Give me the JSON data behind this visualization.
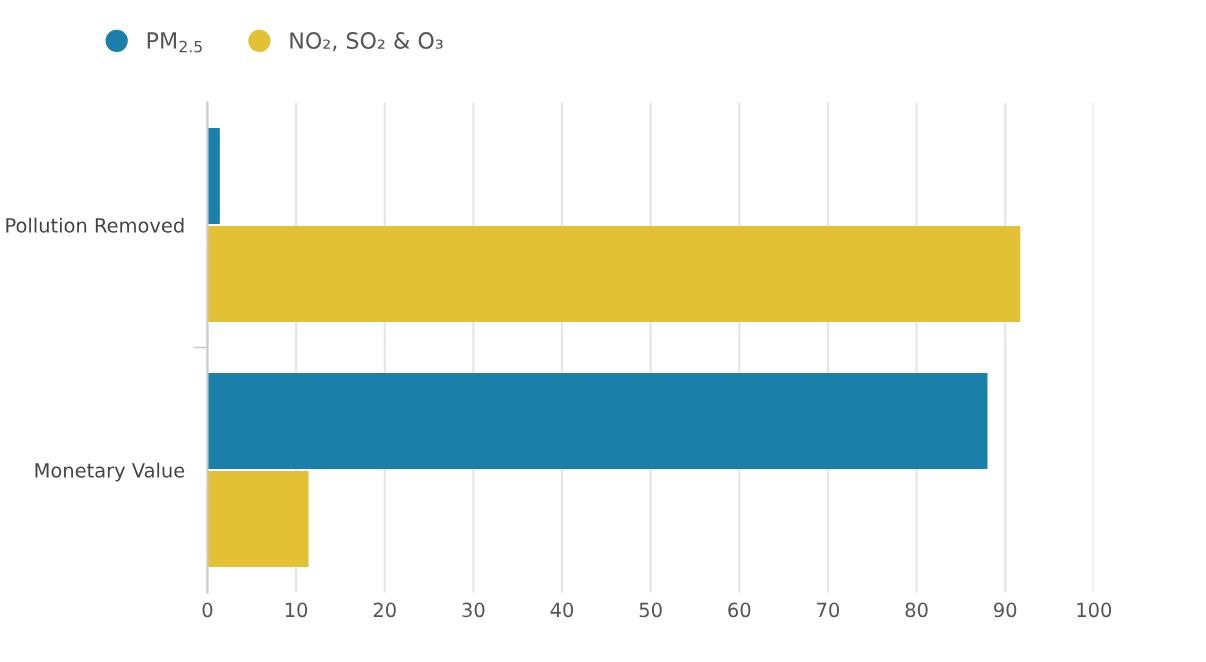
{
  "chart_data": {
    "type": "bar",
    "orientation": "horizontal",
    "categories": [
      "Pollution Removed",
      "Monetary Value"
    ],
    "series": [
      {
        "name": "PM$_{2.5}$",
        "color": "#1a80aa",
        "values": [
          1.4,
          88
        ]
      },
      {
        "name": "NO₂, SO₂ & O₃",
        "color": "#e2c134",
        "values": [
          91.7,
          11.4
        ]
      }
    ],
    "xlim": [
      0,
      100
    ],
    "xticks": [
      0,
      10,
      20,
      30,
      40,
      50,
      60,
      70,
      80,
      90,
      100
    ],
    "grid": "x",
    "legend": "top left"
  }
}
